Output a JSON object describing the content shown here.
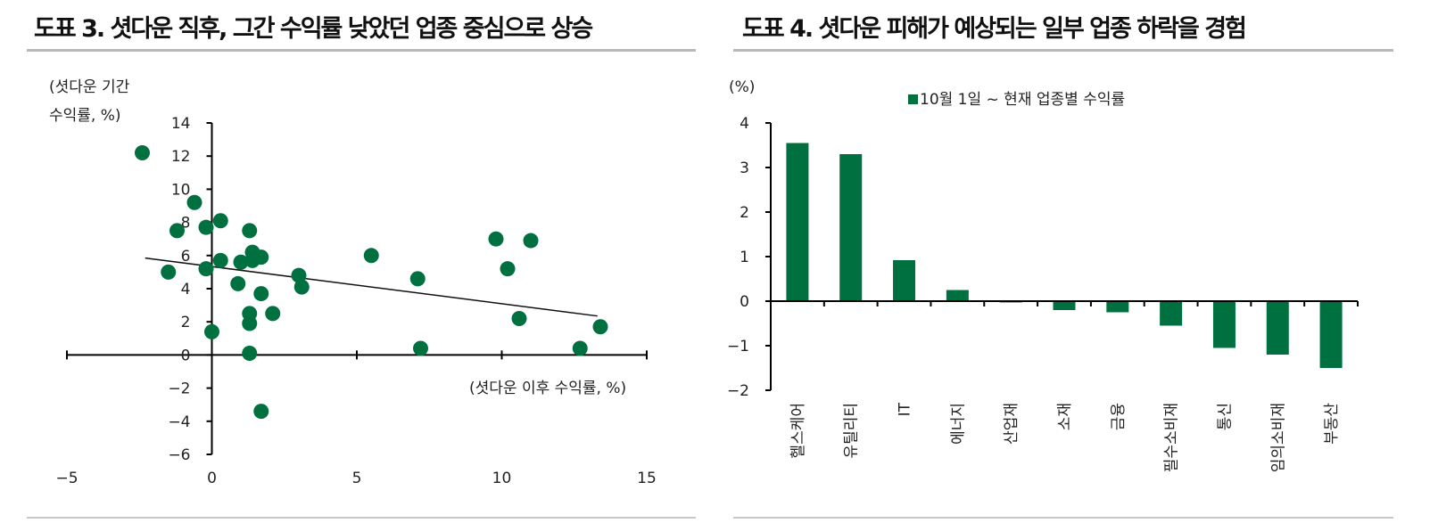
{
  "colors": {
    "accent": "#007040",
    "axis": "#000000",
    "rule": "#b9b9b9",
    "text": "#222222"
  },
  "left_panel": {
    "title": "도표 3. 셧다운 직후, 그간 수익률 낮았던 업종 중심으로 상승"
  },
  "right_panel": {
    "title": "도표 4. 셧다운 피해가 예상되는 일부 업종 하락을 경험"
  },
  "chart_data": [
    {
      "type": "scatter",
      "ylabel_line1": "(셧다운 기간",
      "ylabel_line2": "수익률, %)",
      "xlabel": "(셧다운 이후 수익률, %)",
      "xlim": [
        -5,
        15
      ],
      "ylim": [
        -6,
        14
      ],
      "xticks": [
        -5,
        0,
        5,
        10,
        15
      ],
      "xtick_labels": [
        "−5",
        "0",
        "5",
        "10",
        "15"
      ],
      "yticks": [
        -6,
        -4,
        -2,
        0,
        2,
        4,
        6,
        8,
        10,
        12,
        14
      ],
      "ytick_labels": [
        "−6",
        "−4",
        "−2",
        "0",
        "2",
        "4",
        "6",
        "8",
        "10",
        "12",
        "14"
      ],
      "grid": false,
      "trendline": {
        "x": [
          -2.3,
          13.3
        ],
        "y": [
          5.85,
          2.35
        ]
      },
      "points": [
        {
          "x": -2.4,
          "y": 12.2
        },
        {
          "x": -1.2,
          "y": 7.5
        },
        {
          "x": -1.5,
          "y": 5.0
        },
        {
          "x": -0.6,
          "y": 9.2
        },
        {
          "x": -0.2,
          "y": 7.7
        },
        {
          "x": 0.3,
          "y": 8.1
        },
        {
          "x": -0.2,
          "y": 5.2
        },
        {
          "x": 0.3,
          "y": 5.7
        },
        {
          "x": 0.0,
          "y": 1.4
        },
        {
          "x": 0.9,
          "y": 4.3
        },
        {
          "x": 1.0,
          "y": 5.6
        },
        {
          "x": 1.3,
          "y": 7.5
        },
        {
          "x": 1.4,
          "y": 6.2
        },
        {
          "x": 1.4,
          "y": 5.7
        },
        {
          "x": 1.7,
          "y": 5.9
        },
        {
          "x": 1.7,
          "y": 3.7
        },
        {
          "x": 1.3,
          "y": 2.5
        },
        {
          "x": 1.3,
          "y": 1.9
        },
        {
          "x": 2.1,
          "y": 2.5
        },
        {
          "x": 1.3,
          "y": 0.1
        },
        {
          "x": 1.7,
          "y": -3.4
        },
        {
          "x": 3.0,
          "y": 4.8
        },
        {
          "x": 3.1,
          "y": 4.1
        },
        {
          "x": 5.5,
          "y": 6.0
        },
        {
          "x": 7.1,
          "y": 4.6
        },
        {
          "x": 7.2,
          "y": 0.4
        },
        {
          "x": 9.8,
          "y": 7.0
        },
        {
          "x": 10.2,
          "y": 5.2
        },
        {
          "x": 10.6,
          "y": 2.2
        },
        {
          "x": 11.0,
          "y": 6.9
        },
        {
          "x": 12.7,
          "y": 0.4
        },
        {
          "x": 13.4,
          "y": 1.7
        }
      ]
    },
    {
      "type": "bar",
      "ylabel": "(%)",
      "legend": "10월 1일 ~ 현재 업종별 수익률",
      "legend_position": "top",
      "ylim": [
        -2,
        4
      ],
      "yticks": [
        -2,
        -1,
        0,
        1,
        2,
        3,
        4
      ],
      "ytick_labels": [
        "−2",
        "−1",
        "0",
        "1",
        "2",
        "3",
        "4"
      ],
      "grid": false,
      "categories": [
        "헬스케어",
        "유틸리티",
        "IT",
        "에너지",
        "산업재",
        "소재",
        "금융",
        "필수소비재",
        "통신",
        "임의소비재",
        "부동산"
      ],
      "series": [
        {
          "name": "10월 1일 ~ 현재 업종별 수익률",
          "values": [
            3.55,
            3.3,
            0.92,
            0.25,
            -0.03,
            -0.2,
            -0.25,
            -0.55,
            -1.05,
            -1.2,
            -1.5
          ]
        }
      ]
    }
  ]
}
